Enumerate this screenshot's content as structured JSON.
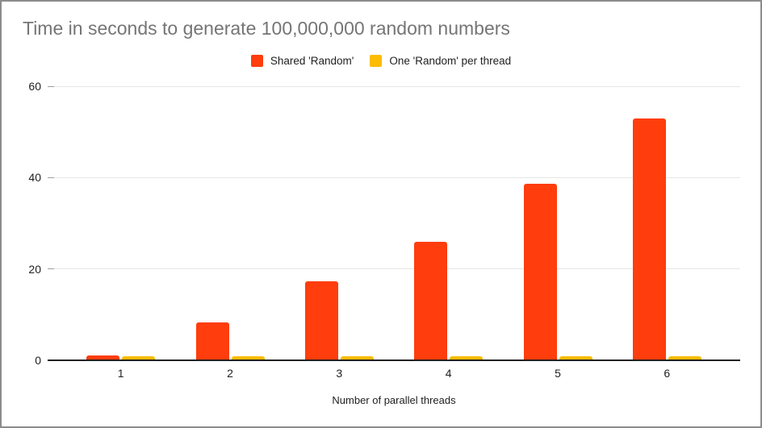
{
  "title": "Time in seconds to generate 100,000,000 random numbers",
  "chart_data": {
    "type": "bar",
    "title": "Time in seconds to generate 100,000,000 random numbers",
    "title_color": "#757575",
    "categories": [
      "1",
      "2",
      "3",
      "4",
      "5",
      "6"
    ],
    "series": [
      {
        "name": "Shared 'Random'",
        "color": "#ff3d0d",
        "values": [
          0.9,
          8.1,
          17.2,
          25.7,
          38.5,
          52.8
        ]
      },
      {
        "name": "One 'Random' per thread",
        "color": "#fbbc04",
        "values": [
          0.7,
          0.7,
          0.7,
          0.7,
          0.7,
          0.7
        ]
      }
    ],
    "xlabel": "Number of parallel threads",
    "ylabel": "",
    "ylim": [
      0,
      60
    ],
    "y_ticks": [
      0,
      20,
      40,
      60
    ],
    "grid": true,
    "grid_color": "#e6e6e6",
    "axis_color": "#212121",
    "legend_position": "top"
  }
}
